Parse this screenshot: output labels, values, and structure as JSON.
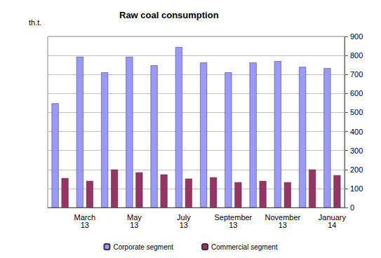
{
  "chart_data": {
    "type": "bar",
    "title": "Raw coal consumption",
    "ylabel": "th.t.",
    "categories": [
      null,
      "March 13",
      null,
      "May 13",
      null,
      "July 13",
      null,
      "September 13",
      null,
      "November 13",
      null,
      "January 14"
    ],
    "series": [
      {
        "name": "Corporate segment",
        "color": "#9999ff",
        "values": [
          548,
          793,
          711,
          793,
          748,
          844,
          763,
          711,
          763,
          770,
          740,
          733
        ]
      },
      {
        "name": "Commercial segment",
        "color": "#993366",
        "values": [
          155,
          140,
          200,
          185,
          174,
          152,
          159,
          133,
          140,
          133,
          200,
          170
        ]
      }
    ],
    "ylim": [
      0,
      900
    ],
    "yticks": [
      0,
      100,
      200,
      300,
      400,
      500,
      600,
      700,
      800,
      900
    ],
    "grid": true,
    "legend": "bottom"
  }
}
